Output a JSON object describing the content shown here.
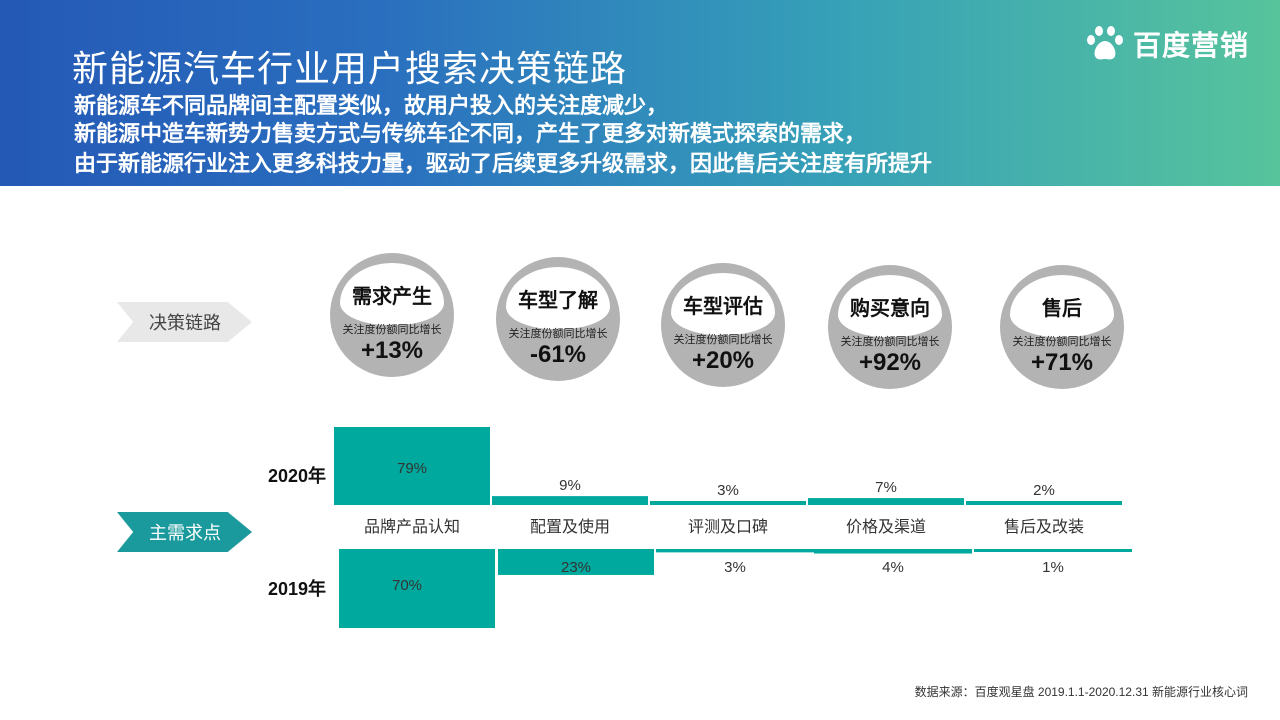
{
  "header": {
    "title": "新能源汽车行业用户搜索决策链路",
    "subtitle_lines": [
      "新能源车不同品牌间主配置类似，故用户投入的关注度减少，",
      "新能源中造车新势力售卖方式与传统车企不同，产生了更多对新模式探索的需求，",
      "由于新能源行业注入更多科技力量，驱动了后续更多升级需求，因此售后关注度有所提升"
    ],
    "logo": {
      "text": "百度营销",
      "icon": "baidu-paw-icon"
    }
  },
  "decision_chain": {
    "label": "决策链路",
    "metric_label": "关注度份额同比增长",
    "stages": [
      {
        "name": "需求产生",
        "growth": "+13%"
      },
      {
        "name": "车型了解",
        "growth": "-61%"
      },
      {
        "name": "车型评估",
        "growth": "+20%"
      },
      {
        "name": "购买意向",
        "growth": "+92%"
      },
      {
        "name": "售后",
        "growth": "+71%"
      }
    ]
  },
  "needs": {
    "label": "主需求点",
    "year_2020": "2020年",
    "year_2019": "2019年"
  },
  "chart_data": {
    "type": "bar",
    "categories": [
      "品牌产品认知",
      "配置及使用",
      "评测及口碑",
      "价格及渠道",
      "售后及改装"
    ],
    "series": [
      {
        "name": "2020年",
        "values": [
          79,
          9,
          3,
          7,
          2
        ],
        "labels": [
          "79%",
          "9%",
          "3%",
          "7%",
          "2%"
        ]
      },
      {
        "name": "2019年",
        "values": [
          70,
          23,
          3,
          4,
          1
        ],
        "labels": [
          "70%",
          "23%",
          "3%",
          "4%",
          "1%"
        ]
      }
    ],
    "colors": {
      "bar": "#00a99d"
    }
  },
  "source": "数据来源：百度观星盘 2019.1.1-2020.12.31 新能源行业核心词"
}
